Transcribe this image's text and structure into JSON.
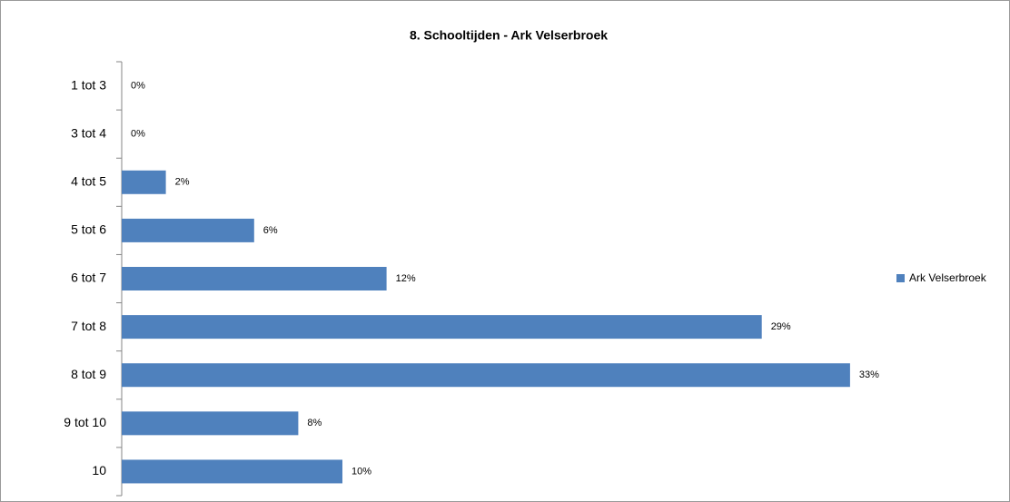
{
  "chart_data": {
    "type": "bar",
    "orientation": "horizontal",
    "title": "8. Schooltijden - Ark Velserbroek",
    "categories": [
      "1 tot 3",
      "3 tot 4",
      "4 tot 5",
      "5 tot 6",
      "6 tot 7",
      "7 tot 8",
      "8 tot 9",
      "9 tot 10",
      "10"
    ],
    "series": [
      {
        "name": "Ark Velserbroek",
        "color": "#4f81bd",
        "values": [
          0,
          0,
          2,
          6,
          12,
          29,
          33,
          8,
          10
        ],
        "value_labels": [
          "0%",
          "0%",
          "2%",
          "6%",
          "12%",
          "29%",
          "33%",
          "8%",
          "10%"
        ]
      }
    ],
    "legend": "right"
  }
}
